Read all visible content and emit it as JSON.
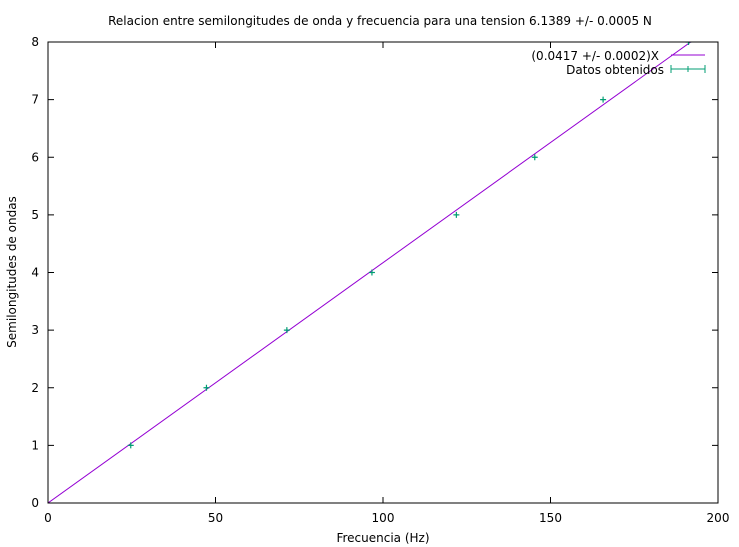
{
  "chart_data": {
    "type": "scatter",
    "title": "Relacion entre semilongitudes de onda y frecuencia para una tension 6.1389 +/- 0.0005 N",
    "xlabel": "Frecuencia (Hz)",
    "ylabel": "Semilongitudes de ondas",
    "xlim": [
      0,
      200
    ],
    "ylim": [
      0,
      8
    ],
    "xticks": [
      0,
      50,
      100,
      150,
      200
    ],
    "yticks": [
      0,
      1,
      2,
      3,
      4,
      5,
      6,
      7,
      8
    ],
    "grid": false,
    "legend_position": "top-right",
    "series": [
      {
        "name": "(0.0417 +/- 0.0002)X",
        "kind": "line",
        "color": "#9400d3",
        "slope": 0.0417,
        "x": [
          0,
          200
        ]
      },
      {
        "name": "Datos obtenidos",
        "kind": "points-with-xerrorbars",
        "color": "#009e73",
        "x": [
          24.7,
          47.3,
          71.3,
          96.7,
          121.9,
          145.3,
          165.7,
          191.2
        ],
        "y": [
          1,
          2,
          3,
          4,
          5,
          6,
          7,
          8
        ],
        "xerr": [
          0.5,
          0.5,
          0.5,
          0.5,
          0.5,
          0.5,
          0.5,
          0.5
        ]
      }
    ]
  }
}
